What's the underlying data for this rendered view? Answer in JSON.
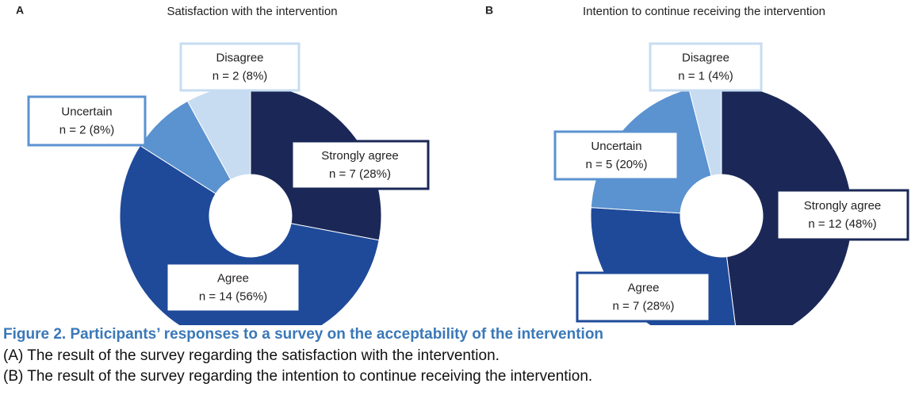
{
  "chart_data": [
    {
      "type": "pie",
      "panel": "A",
      "title": "Satisfaction with the intervention",
      "categories": [
        "Strongly agree",
        "Agree",
        "Uncertain",
        "Disagree"
      ],
      "values": [
        7,
        14,
        2,
        2
      ],
      "value_labels": [
        "n = 7 (28%)",
        "n = 14 (56%)",
        "n = 2 (8%)",
        "n = 2 (8%)"
      ],
      "colors": [
        "#1b2857",
        "#1f4a9a",
        "#5b92d0",
        "#c7dcf1"
      ]
    },
    {
      "type": "pie",
      "panel": "B",
      "title": "Intention to continue receiving the intervention",
      "categories": [
        "Strongly agree",
        "Agree",
        "Uncertain",
        "Disagree"
      ],
      "values": [
        12,
        7,
        5,
        1
      ],
      "value_labels": [
        "n = 12 (48%)",
        "n = 7 (28%)",
        "n = 5 (20%)",
        "n = 1 (4%)"
      ],
      "colors": [
        "#1b2857",
        "#1f4a9a",
        "#5b92d0",
        "#c7dcf1"
      ]
    }
  ],
  "caption": {
    "title": "Figure 2. Participants’ responses to a survey on the acceptability of the intervention",
    "lines": [
      "(A) The result of the survey regarding the satisfaction with the intervention.",
      "(B) The result of the survey regarding the intention to continue receiving the intervention."
    ]
  }
}
